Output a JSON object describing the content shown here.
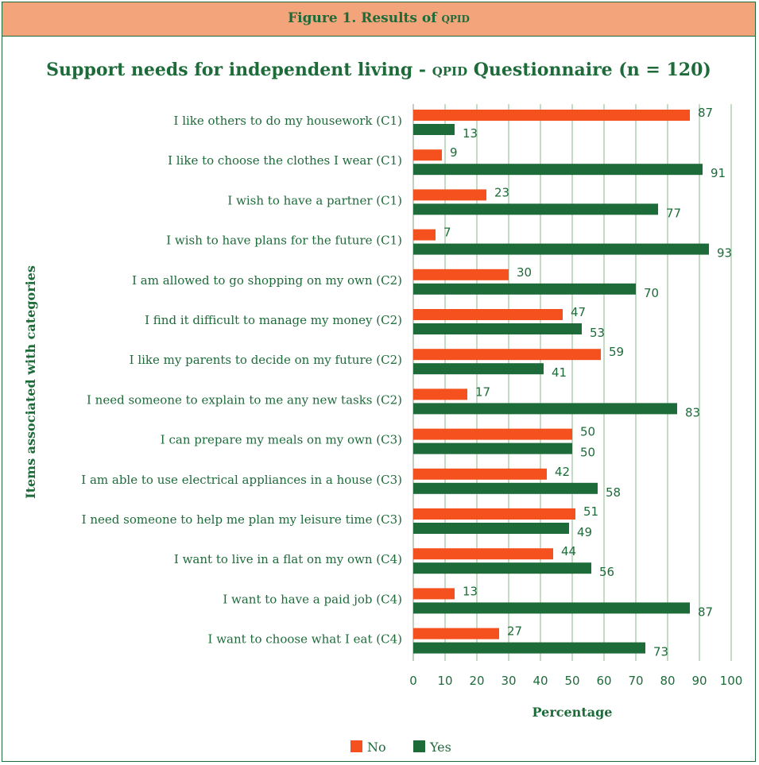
{
  "figure": {
    "label_prefix": "Figure 1. Results of ",
    "label_abbrev": "qpid"
  },
  "colors": {
    "no": "#f4511e",
    "yes": "#1e6b3a",
    "grid": "#c5dcc4",
    "header_bg": "#f4a47a",
    "text": "#1e6b3a"
  },
  "chart_data": {
    "type": "bar",
    "orientation": "horizontal",
    "title_parts": [
      "Support needs for independent living - ",
      "qpid",
      " Questionnaire (n = 120)"
    ],
    "title": "Support needs for independent living - QPID Questionnaire (n = 120)",
    "xlabel": "Percentage",
    "ylabel": "Items associated with categories",
    "xlim": [
      0,
      100
    ],
    "xticks": [
      0,
      10,
      20,
      30,
      40,
      50,
      60,
      70,
      80,
      90,
      100
    ],
    "grid": true,
    "legend_position": "bottom-center",
    "categories": [
      "I like others to do my housework (C1)",
      "I like to choose the clothes I wear (C1)",
      "I wish to have a partner (C1)",
      "I wish to have plans for the future (C1)",
      "I am allowed to go shopping on my own (C2)",
      "I find it difficult to manage my money (C2)",
      "I like my parents to decide on my future (C2)",
      "I need someone to explain to me any new tasks (C2)",
      "I can prepare my meals on my own (C3)",
      "I am able to use electrical appliances in a house (C3)",
      "I need someone to help me plan my leisure time (C3)",
      "I want to live in a flat on my own (C4)",
      "I want to have a paid job (C4)",
      "I want to choose what I eat (C4)"
    ],
    "series": [
      {
        "name": "No",
        "values": [
          87,
          9,
          23,
          7,
          30,
          47,
          59,
          17,
          50,
          42,
          51,
          44,
          13,
          27
        ]
      },
      {
        "name": "Yes",
        "values": [
          13,
          91,
          77,
          93,
          70,
          53,
          41,
          83,
          50,
          58,
          49,
          56,
          87,
          73
        ]
      }
    ]
  }
}
